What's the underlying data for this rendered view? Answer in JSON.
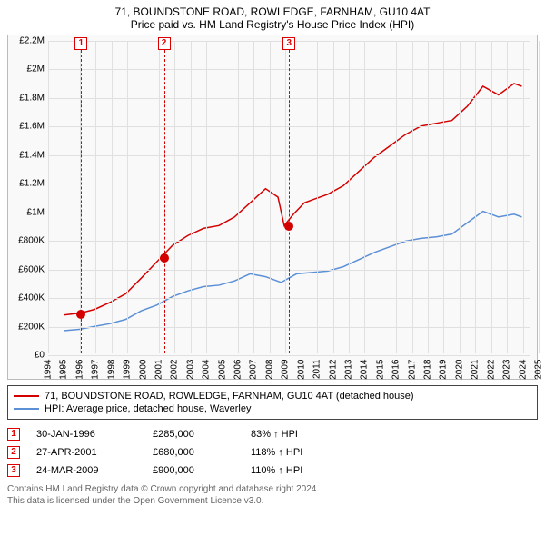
{
  "title_line1": "71, BOUNDSTONE ROAD, ROWLEDGE, FARNHAM, GU10 4AT",
  "title_line2": "Price paid vs. HM Land Registry's House Price Index (HPI)",
  "chart": {
    "type": "line",
    "background_color": "#f9f9f9",
    "grid_color": "#e0e0e0",
    "x_axis": {
      "min": 1994,
      "max": 2025,
      "tick_step": 1
    },
    "y_axis": {
      "min": 0,
      "max": 2200000,
      "tick_step": 200000,
      "currency": "£",
      "suffix_millions": "M"
    },
    "series": [
      {
        "name": "71, BOUNDSTONE ROAD, ROWLEDGE, FARNHAM, GU10 4AT (detached house)",
        "color": "#d40000",
        "line_width": 1.5,
        "data": [
          [
            1995.0,
            270000
          ],
          [
            1996.1,
            285000
          ],
          [
            1997.0,
            310000
          ],
          [
            1998.0,
            360000
          ],
          [
            1999.0,
            420000
          ],
          [
            2000.0,
            530000
          ],
          [
            2001.3,
            680000
          ],
          [
            2002.0,
            760000
          ],
          [
            2003.0,
            830000
          ],
          [
            2004.0,
            880000
          ],
          [
            2005.0,
            900000
          ],
          [
            2006.0,
            960000
          ],
          [
            2007.0,
            1060000
          ],
          [
            2008.0,
            1160000
          ],
          [
            2008.8,
            1100000
          ],
          [
            2009.2,
            900000
          ],
          [
            2009.8,
            980000
          ],
          [
            2010.5,
            1060000
          ],
          [
            2011.0,
            1080000
          ],
          [
            2012.0,
            1120000
          ],
          [
            2013.0,
            1180000
          ],
          [
            2014.0,
            1280000
          ],
          [
            2015.0,
            1380000
          ],
          [
            2016.0,
            1460000
          ],
          [
            2017.0,
            1540000
          ],
          [
            2018.0,
            1600000
          ],
          [
            2019.0,
            1620000
          ],
          [
            2020.0,
            1640000
          ],
          [
            2021.0,
            1740000
          ],
          [
            2022.0,
            1880000
          ],
          [
            2023.0,
            1820000
          ],
          [
            2024.0,
            1900000
          ],
          [
            2024.5,
            1880000
          ]
        ]
      },
      {
        "name": "HPI: Average price, detached house, Waverley",
        "color": "#5b8fd6",
        "line_width": 1.5,
        "data": [
          [
            1995.0,
            160000
          ],
          [
            1996.0,
            170000
          ],
          [
            1997.0,
            190000
          ],
          [
            1998.0,
            210000
          ],
          [
            1999.0,
            240000
          ],
          [
            2000.0,
            300000
          ],
          [
            2001.0,
            340000
          ],
          [
            2002.0,
            400000
          ],
          [
            2003.0,
            440000
          ],
          [
            2004.0,
            470000
          ],
          [
            2005.0,
            480000
          ],
          [
            2006.0,
            510000
          ],
          [
            2007.0,
            560000
          ],
          [
            2008.0,
            540000
          ],
          [
            2009.0,
            500000
          ],
          [
            2010.0,
            560000
          ],
          [
            2011.0,
            570000
          ],
          [
            2012.0,
            580000
          ],
          [
            2013.0,
            610000
          ],
          [
            2014.0,
            660000
          ],
          [
            2015.0,
            710000
          ],
          [
            2016.0,
            750000
          ],
          [
            2017.0,
            790000
          ],
          [
            2018.0,
            810000
          ],
          [
            2019.0,
            820000
          ],
          [
            2020.0,
            840000
          ],
          [
            2021.0,
            920000
          ],
          [
            2022.0,
            1000000
          ],
          [
            2023.0,
            960000
          ],
          [
            2024.0,
            980000
          ],
          [
            2024.5,
            960000
          ]
        ]
      }
    ],
    "events": [
      {
        "num": "1",
        "x": 1996.08,
        "date": "30-JAN-1996",
        "price": "£285,000",
        "pct": "83% ↑ HPI",
        "line_color": "#d40000",
        "marker_y": 285000,
        "marker_color": "#d40000"
      },
      {
        "num": "2",
        "x": 2001.32,
        "date": "27-APR-2001",
        "price": "£680,000",
        "pct": "118% ↑ HPI",
        "line_color": "#d40000",
        "marker_y": 680000,
        "marker_color": "#d40000"
      },
      {
        "num": "3",
        "x": 2009.23,
        "date": "24-MAR-2009",
        "price": "£900,000",
        "pct": "110% ↑ HPI",
        "line_color": "#d40000",
        "marker_y": 900000,
        "marker_color": "#d40000"
      }
    ]
  },
  "legend": {
    "items": [
      {
        "color": "#d40000",
        "label": "71, BOUNDSTONE ROAD, ROWLEDGE, FARNHAM, GU10 4AT (detached house)"
      },
      {
        "color": "#5b8fd6",
        "label": "HPI: Average price, detached house, Waverley"
      }
    ]
  },
  "footer_line1": "Contains HM Land Registry data © Crown copyright and database right 2024.",
  "footer_line2": "This data is licensed under the Open Government Licence v3.0."
}
